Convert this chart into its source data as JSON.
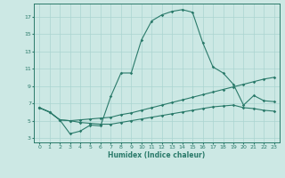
{
  "xlabel": "Humidex (Indice chaleur)",
  "bg_color": "#cce8e4",
  "grid_color": "#aad4d0",
  "line_color": "#2a7a6a",
  "x_hours": [
    0,
    1,
    2,
    3,
    4,
    5,
    6,
    7,
    8,
    9,
    10,
    11,
    12,
    13,
    14,
    15,
    16,
    17,
    18,
    19,
    20,
    21,
    22,
    23
  ],
  "series1": [
    6.5,
    6.0,
    5.1,
    3.5,
    3.8,
    4.5,
    4.4,
    7.8,
    10.5,
    10.5,
    14.3,
    16.5,
    17.2,
    17.6,
    17.8,
    17.5,
    14.0,
    11.2,
    10.5,
    9.2,
    6.8,
    7.9,
    7.3,
    7.2
  ],
  "series2": [
    6.5,
    6.0,
    5.1,
    5.0,
    5.1,
    5.2,
    5.3,
    5.4,
    5.7,
    5.9,
    6.2,
    6.5,
    6.8,
    7.1,
    7.4,
    7.7,
    8.0,
    8.3,
    8.6,
    8.9,
    9.2,
    9.5,
    9.8,
    10.0
  ],
  "series3": [
    6.5,
    6.0,
    5.1,
    5.0,
    4.8,
    4.7,
    4.6,
    4.6,
    4.8,
    5.0,
    5.2,
    5.4,
    5.6,
    5.8,
    6.0,
    6.2,
    6.4,
    6.6,
    6.7,
    6.8,
    6.5,
    6.4,
    6.2,
    6.1
  ],
  "ylim": [
    2.5,
    18.5
  ],
  "xlim": [
    -0.5,
    23.5
  ],
  "yticks": [
    3,
    5,
    7,
    9,
    11,
    13,
    15,
    17
  ],
  "xticks": [
    0,
    1,
    2,
    3,
    4,
    5,
    6,
    7,
    8,
    9,
    10,
    11,
    12,
    13,
    14,
    15,
    16,
    17,
    18,
    19,
    20,
    21,
    22,
    23
  ]
}
